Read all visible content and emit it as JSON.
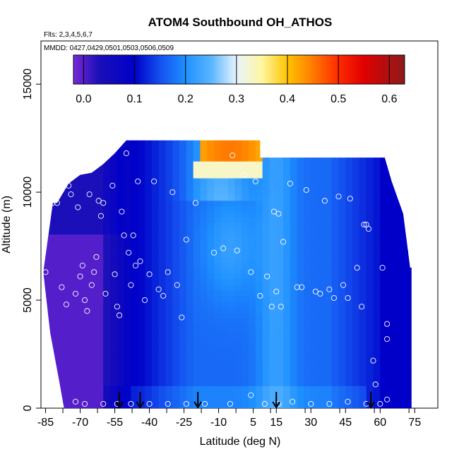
{
  "chart_data": {
    "type": "heatmap",
    "title": "ATOM4 Southbound OH_ATHOS",
    "subtitle_flights": "Flts: 2,3,4,5,6,7",
    "subtitle_dates": "MMDD: 0427,0429,0501,0503,0506,0509",
    "xlabel": "Latitude (deg N)",
    "ylabel": "Altitude (m)",
    "xlim": [
      -87,
      85
    ],
    "ylim": [
      0,
      17000
    ],
    "x_ticks": [
      -85,
      -70,
      -55,
      -40,
      -25,
      -10,
      5,
      15,
      30,
      45,
      60,
      75
    ],
    "x_tick_labels": [
      "-85",
      "-70",
      "-55",
      "-40",
      "-25",
      "-10",
      "5",
      "15",
      "30",
      "45",
      "60",
      "75"
    ],
    "y_ticks": [
      0,
      5000,
      10000,
      15000
    ],
    "y_tick_labels": [
      "0",
      "5000",
      "10000",
      "15000"
    ],
    "colorbar": {
      "range": [
        -0.02,
        0.63
      ],
      "ticks": [
        0.0,
        0.1,
        0.2,
        0.3,
        0.4,
        0.5,
        0.6
      ],
      "tick_labels": [
        "0.0",
        "0.1",
        "0.2",
        "0.3",
        "0.4",
        "0.5",
        "0.6"
      ],
      "stops": [
        {
          "v": -0.02,
          "color": "#7a28d8"
        },
        {
          "v": 0.03,
          "color": "#1a0fb8"
        },
        {
          "v": 0.1,
          "color": "#0000c8"
        },
        {
          "v": 0.15,
          "color": "#1450f0"
        },
        {
          "v": 0.2,
          "color": "#1e90ff"
        },
        {
          "v": 0.25,
          "color": "#58b4ff"
        },
        {
          "v": 0.3,
          "color": "#e8f4ff"
        },
        {
          "v": 0.35,
          "color": "#fff7a0"
        },
        {
          "v": 0.4,
          "color": "#ffc400"
        },
        {
          "v": 0.45,
          "color": "#ff7a00"
        },
        {
          "v": 0.5,
          "color": "#ff2a00"
        },
        {
          "v": 0.55,
          "color": "#e00000"
        },
        {
          "v": 0.63,
          "color": "#8c1a1a"
        }
      ]
    },
    "top_altitude_profile": [
      {
        "lat": -80,
        "alt": 9500
      },
      {
        "lat": -75,
        "alt": 10400
      },
      {
        "lat": -70,
        "alt": 10800
      },
      {
        "lat": -65,
        "alt": 10900
      },
      {
        "lat": -60,
        "alt": 11300
      },
      {
        "lat": -55,
        "alt": 11800
      },
      {
        "lat": -50,
        "alt": 12400
      },
      {
        "lat": 8,
        "alt": 12400
      },
      {
        "lat": 8,
        "alt": 11600
      },
      {
        "lat": 62,
        "alt": 11600
      },
      {
        "lat": 65,
        "alt": 10500
      },
      {
        "lat": 70,
        "alt": 9000
      },
      {
        "lat": 73,
        "alt": 6500
      }
    ],
    "data_points": [
      {
        "lat": -85,
        "alt": 6300
      },
      {
        "lat": -82,
        "alt": 9500
      },
      {
        "lat": -80,
        "alt": 9500
      },
      {
        "lat": -78,
        "alt": 5600
      },
      {
        "lat": -76,
        "alt": 4800
      },
      {
        "lat": -75,
        "alt": 10300
      },
      {
        "lat": -74,
        "alt": 9900
      },
      {
        "lat": -72,
        "alt": 5300
      },
      {
        "lat": -71,
        "alt": 9300
      },
      {
        "lat": -70,
        "alt": 6100
      },
      {
        "lat": -69,
        "alt": 6600
      },
      {
        "lat": -68,
        "alt": 5000
      },
      {
        "lat": -67,
        "alt": 4500
      },
      {
        "lat": -66,
        "alt": 9900
      },
      {
        "lat": -65,
        "alt": 5700
      },
      {
        "lat": -64,
        "alt": 6300
      },
      {
        "lat": -63,
        "alt": 7000
      },
      {
        "lat": -62,
        "alt": 9600
      },
      {
        "lat": -61,
        "alt": 8900
      },
      {
        "lat": -60,
        "alt": 9500
      },
      {
        "lat": -59,
        "alt": 5300
      },
      {
        "lat": -58,
        "alt": 11800
      },
      {
        "lat": -56,
        "alt": 10300
      },
      {
        "lat": -55,
        "alt": 6200
      },
      {
        "lat": -54,
        "alt": 4700
      },
      {
        "lat": -53,
        "alt": 4300
      },
      {
        "lat": -52,
        "alt": 9100
      },
      {
        "lat": -51,
        "alt": 8000
      },
      {
        "lat": -50,
        "alt": 11800
      },
      {
        "lat": -49,
        "alt": 7200
      },
      {
        "lat": -48,
        "alt": 5700
      },
      {
        "lat": -47,
        "alt": 8000
      },
      {
        "lat": -46,
        "alt": 6600
      },
      {
        "lat": -45,
        "alt": 10500
      },
      {
        "lat": -44,
        "alt": 6800
      },
      {
        "lat": -42,
        "alt": 5000
      },
      {
        "lat": -40,
        "alt": 6200
      },
      {
        "lat": -38,
        "alt": 10500
      },
      {
        "lat": -36,
        "alt": 5500
      },
      {
        "lat": -34,
        "alt": 5200
      },
      {
        "lat": -32,
        "alt": 6300
      },
      {
        "lat": -30,
        "alt": 10000
      },
      {
        "lat": -28,
        "alt": 5700
      },
      {
        "lat": -26,
        "alt": 4200
      },
      {
        "lat": -24,
        "alt": 7800
      },
      {
        "lat": -20,
        "alt": 9500
      },
      {
        "lat": -12,
        "alt": 7200
      },
      {
        "lat": -8,
        "alt": 7400
      },
      {
        "lat": -4,
        "alt": 11700
      },
      {
        "lat": -2,
        "alt": 7300
      },
      {
        "lat": 1,
        "alt": 10800
      },
      {
        "lat": 4,
        "alt": 6300
      },
      {
        "lat": 6,
        "alt": 10500
      },
      {
        "lat": 8,
        "alt": 5200
      },
      {
        "lat": 11,
        "alt": 6100
      },
      {
        "lat": 13,
        "alt": 4700
      },
      {
        "lat": 14,
        "alt": 9100
      },
      {
        "lat": 15,
        "alt": 5400
      },
      {
        "lat": 16,
        "alt": 9000
      },
      {
        "lat": 17,
        "alt": 4700
      },
      {
        "lat": 18,
        "alt": 7700
      },
      {
        "lat": 21,
        "alt": 10400
      },
      {
        "lat": 24,
        "alt": 5600
      },
      {
        "lat": 26,
        "alt": 5600
      },
      {
        "lat": 28,
        "alt": 10100
      },
      {
        "lat": 32,
        "alt": 5400
      },
      {
        "lat": 34,
        "alt": 5300
      },
      {
        "lat": 36,
        "alt": 9600
      },
      {
        "lat": 38,
        "alt": 5500
      },
      {
        "lat": 40,
        "alt": 5100
      },
      {
        "lat": 42,
        "alt": 9800
      },
      {
        "lat": 44,
        "alt": 5700
      },
      {
        "lat": 46,
        "alt": 5100
      },
      {
        "lat": 47,
        "alt": 9700
      },
      {
        "lat": 50,
        "alt": 6500
      },
      {
        "lat": 52,
        "alt": 4700
      },
      {
        "lat": 53,
        "alt": 8500
      },
      {
        "lat": 54,
        "alt": 8500
      },
      {
        "lat": 55,
        "alt": 8300
      },
      {
        "lat": 57,
        "alt": 2200
      },
      {
        "lat": 58,
        "alt": 1100
      },
      {
        "lat": 61,
        "alt": 6500
      },
      {
        "lat": 63,
        "alt": 3900
      },
      {
        "lat": 63,
        "alt": 3200
      },
      {
        "lat": 63,
        "alt": 400
      },
      {
        "lat": -72,
        "alt": 300
      },
      {
        "lat": -68,
        "alt": 200
      },
      {
        "lat": -60,
        "alt": 200
      },
      {
        "lat": -54,
        "alt": 200
      },
      {
        "lat": -48,
        "alt": 200
      },
      {
        "lat": -40,
        "alt": 200
      },
      {
        "lat": -32,
        "alt": 200
      },
      {
        "lat": -24,
        "alt": 200
      },
      {
        "lat": -16,
        "alt": 200
      },
      {
        "lat": -5,
        "alt": 200
      },
      {
        "lat": 4,
        "alt": 600
      },
      {
        "lat": 10,
        "alt": 200
      },
      {
        "lat": 16,
        "alt": 200
      },
      {
        "lat": 22,
        "alt": 300
      },
      {
        "lat": 30,
        "alt": 200
      },
      {
        "lat": 38,
        "alt": 200
      },
      {
        "lat": 46,
        "alt": 300
      },
      {
        "lat": 54,
        "alt": 200
      },
      {
        "lat": 60,
        "alt": 200
      }
    ],
    "arrow_markers_lat": [
      -53,
      -44,
      -19,
      15,
      56
    ]
  }
}
